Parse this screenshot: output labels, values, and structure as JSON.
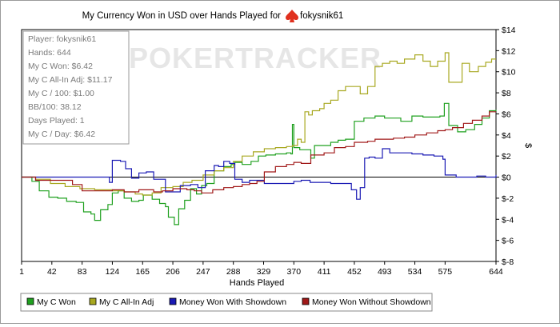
{
  "chart_data": {
    "type": "line",
    "title": "My Currency Won in USD over Hands Played for",
    "player_name": "fokysnik61",
    "xlabel": "Hands Played",
    "ylabel": "$",
    "watermark": "POKERTRACKER",
    "x_ticks": [
      "1",
      "42",
      "83",
      "124",
      "165",
      "206",
      "247",
      "288",
      "329",
      "370",
      "411",
      "452",
      "493",
      "534",
      "575",
      "644"
    ],
    "y_ticks": [
      "$14",
      "$12",
      "$10",
      "$8",
      "$6",
      "$4",
      "$2",
      "$0",
      "$-2",
      "$-4",
      "$-6",
      "$-8"
    ],
    "xlim": [
      1,
      644
    ],
    "ylim": [
      -8,
      14
    ],
    "grid": false,
    "legend_position": "bottom",
    "stats": [
      "Player: fokysnik61",
      "Hands: 644",
      "My C Won: $6.42",
      "My C All-In Adj: $11.17",
      "My C / 100: $1.00",
      "BB/100: 38.12",
      "Days Played: 1",
      "My C / Day: $6.42"
    ],
    "series": [
      {
        "name": "My C Won",
        "color": "#1fa01f",
        "points": [
          [
            1,
            0
          ],
          [
            15,
            -0.4
          ],
          [
            25,
            -1.3
          ],
          [
            38,
            -1.9
          ],
          [
            50,
            -2.0
          ],
          [
            62,
            -2.3
          ],
          [
            75,
            -2.4
          ],
          [
            85,
            -3.3
          ],
          [
            95,
            -3.5
          ],
          [
            100,
            -4.1
          ],
          [
            108,
            -3.1
          ],
          [
            118,
            -2.6
          ],
          [
            124,
            -1.5
          ],
          [
            132,
            -1.3
          ],
          [
            140,
            -2.0
          ],
          [
            150,
            -2.3
          ],
          [
            160,
            -2.2
          ],
          [
            166,
            -1.7
          ],
          [
            178,
            -2.1
          ],
          [
            188,
            -2.5
          ],
          [
            196,
            -2.8
          ],
          [
            200,
            -3.8
          ],
          [
            208,
            -4.5
          ],
          [
            214,
            -3.0
          ],
          [
            222,
            -2.2
          ],
          [
            230,
            -1.1
          ],
          [
            238,
            -1.6
          ],
          [
            245,
            -0.8
          ],
          [
            252,
            -0.6
          ],
          [
            262,
            0.6
          ],
          [
            275,
            1.0
          ],
          [
            285,
            1.2
          ],
          [
            290,
            1.4
          ],
          [
            300,
            1.2
          ],
          [
            312,
            1.5
          ],
          [
            322,
            2.0
          ],
          [
            332,
            2.1
          ],
          [
            345,
            2.2
          ],
          [
            360,
            2.3
          ],
          [
            366,
            2.2
          ],
          [
            368,
            5.0
          ],
          [
            370,
            2.8
          ],
          [
            378,
            2.6
          ],
          [
            388,
            2.6
          ],
          [
            393,
            1.8
          ],
          [
            398,
            3.0
          ],
          [
            405,
            3.0
          ],
          [
            420,
            3.3
          ],
          [
            430,
            3.5
          ],
          [
            440,
            3.6
          ],
          [
            449,
            3.6
          ],
          [
            452,
            5.3
          ],
          [
            465,
            5.6
          ],
          [
            480,
            5.8
          ],
          [
            493,
            5.6
          ],
          [
            505,
            5.6
          ],
          [
            515,
            5.3
          ],
          [
            530,
            5.8
          ],
          [
            545,
            5.7
          ],
          [
            558,
            5.7
          ],
          [
            568,
            5.8
          ],
          [
            574,
            7.0
          ],
          [
            580,
            4.9
          ],
          [
            592,
            4.3
          ],
          [
            603,
            4.5
          ],
          [
            615,
            5.0
          ],
          [
            625,
            5.6
          ],
          [
            635,
            6.3
          ],
          [
            644,
            6.4
          ]
        ]
      },
      {
        "name": "My C All-In Adj",
        "color": "#a8a820",
        "points": [
          [
            1,
            0
          ],
          [
            20,
            -0.2
          ],
          [
            40,
            -0.6
          ],
          [
            60,
            -0.9
          ],
          [
            80,
            -1.1
          ],
          [
            100,
            -1.2
          ],
          [
            124,
            -1.3
          ],
          [
            140,
            -1.4
          ],
          [
            155,
            -1.6
          ],
          [
            165,
            -1.7
          ],
          [
            178,
            -1.5
          ],
          [
            190,
            -1.0
          ],
          [
            206,
            -0.9
          ],
          [
            220,
            -0.5
          ],
          [
            232,
            -0.3
          ],
          [
            247,
            0.2
          ],
          [
            262,
            0.6
          ],
          [
            275,
            0.9
          ],
          [
            288,
            1.5
          ],
          [
            300,
            2.0
          ],
          [
            315,
            2.4
          ],
          [
            330,
            2.7
          ],
          [
            345,
            2.8
          ],
          [
            360,
            2.9
          ],
          [
            368,
            3.0
          ],
          [
            375,
            3.6
          ],
          [
            380,
            3.3
          ],
          [
            385,
            6.2
          ],
          [
            390,
            5.9
          ],
          [
            395,
            6.3
          ],
          [
            405,
            6.5
          ],
          [
            411,
            7.0
          ],
          [
            420,
            7.3
          ],
          [
            430,
            8.2
          ],
          [
            440,
            8.6
          ],
          [
            452,
            8.6
          ],
          [
            460,
            7.9
          ],
          [
            470,
            8.6
          ],
          [
            480,
            10.5
          ],
          [
            490,
            10.8
          ],
          [
            500,
            11.0
          ],
          [
            510,
            10.8
          ],
          [
            520,
            11.2
          ],
          [
            534,
            11.6
          ],
          [
            545,
            11.0
          ],
          [
            555,
            10.5
          ],
          [
            565,
            11.0
          ],
          [
            575,
            11.8
          ],
          [
            580,
            9.0
          ],
          [
            590,
            9.0
          ],
          [
            598,
            10.8
          ],
          [
            608,
            10.0
          ],
          [
            620,
            10.5
          ],
          [
            630,
            10.9
          ],
          [
            638,
            11.2
          ],
          [
            644,
            11.2
          ]
        ]
      },
      {
        "name": "Money Won With Showdown",
        "color": "#1a1ab4",
        "points": [
          [
            1,
            0
          ],
          [
            30,
            0
          ],
          [
            60,
            0
          ],
          [
            83,
            0
          ],
          [
            100,
            0
          ],
          [
            118,
            0
          ],
          [
            120,
            -0.5
          ],
          [
            124,
            1.6
          ],
          [
            135,
            1.5
          ],
          [
            142,
            0.8
          ],
          [
            150,
            -0.1
          ],
          [
            160,
            0.4
          ],
          [
            170,
            0.5
          ],
          [
            180,
            -0.2
          ],
          [
            190,
            -0.2
          ],
          [
            196,
            -1.4
          ],
          [
            206,
            -1.4
          ],
          [
            216,
            -0.8
          ],
          [
            230,
            -0.7
          ],
          [
            240,
            -1.0
          ],
          [
            250,
            0.6
          ],
          [
            255,
            0.6
          ],
          [
            262,
            1.1
          ],
          [
            268,
            1.0
          ],
          [
            275,
            1.5
          ],
          [
            283,
            1.3
          ],
          [
            290,
            -0.2
          ],
          [
            300,
            -0.5
          ],
          [
            310,
            -0.3
          ],
          [
            320,
            -0.3
          ],
          [
            330,
            -0.6
          ],
          [
            350,
            -0.6
          ],
          [
            365,
            -0.6
          ],
          [
            370,
            -0.4
          ],
          [
            380,
            -0.3
          ],
          [
            392,
            -0.5
          ],
          [
            400,
            -0.5
          ],
          [
            420,
            -0.6
          ],
          [
            430,
            -0.6
          ],
          [
            443,
            -0.6
          ],
          [
            448,
            -1.2
          ],
          [
            455,
            -2.1
          ],
          [
            460,
            -1.0
          ],
          [
            466,
            1.8
          ],
          [
            472,
            1.9
          ],
          [
            480,
            1.8
          ],
          [
            490,
            2.7
          ],
          [
            500,
            2.3
          ],
          [
            515,
            2.3
          ],
          [
            530,
            2.2
          ],
          [
            545,
            2.1
          ],
          [
            560,
            2.0
          ],
          [
            572,
            1.7
          ],
          [
            575,
            0.2
          ],
          [
            590,
            0.0
          ],
          [
            605,
            0.0
          ],
          [
            618,
            0.1
          ],
          [
            630,
            0.0
          ],
          [
            644,
            0.2
          ]
        ]
      },
      {
        "name": "Money Won Without Showdown",
        "color": "#a01818",
        "points": [
          [
            1,
            0
          ],
          [
            20,
            -0.3
          ],
          [
            42,
            -0.3
          ],
          [
            60,
            -0.3
          ],
          [
            70,
            -0.7
          ],
          [
            83,
            -1.3
          ],
          [
            100,
            -1.3
          ],
          [
            124,
            -1.2
          ],
          [
            140,
            -1.4
          ],
          [
            160,
            -1.2
          ],
          [
            170,
            -1.2
          ],
          [
            180,
            -1.4
          ],
          [
            192,
            -1.3
          ],
          [
            206,
            -1.1
          ],
          [
            225,
            -1.2
          ],
          [
            235,
            -1.3
          ],
          [
            245,
            -1.5
          ],
          [
            260,
            -1.2
          ],
          [
            275,
            -1.0
          ],
          [
            288,
            -0.9
          ],
          [
            300,
            -0.7
          ],
          [
            310,
            -0.6
          ],
          [
            320,
            -0.4
          ],
          [
            330,
            0.5
          ],
          [
            345,
            1.0
          ],
          [
            360,
            1.2
          ],
          [
            370,
            1.4
          ],
          [
            380,
            1.3
          ],
          [
            393,
            2.1
          ],
          [
            411,
            2.3
          ],
          [
            425,
            2.8
          ],
          [
            440,
            2.9
          ],
          [
            452,
            3.3
          ],
          [
            470,
            3.4
          ],
          [
            480,
            3.6
          ],
          [
            493,
            3.6
          ],
          [
            505,
            3.7
          ],
          [
            520,
            3.8
          ],
          [
            534,
            4.0
          ],
          [
            550,
            4.2
          ],
          [
            565,
            4.4
          ],
          [
            575,
            4.5
          ],
          [
            585,
            4.7
          ],
          [
            600,
            5.1
          ],
          [
            612,
            5.4
          ],
          [
            625,
            5.8
          ],
          [
            635,
            6.2
          ],
          [
            644,
            6.2
          ]
        ]
      }
    ]
  }
}
